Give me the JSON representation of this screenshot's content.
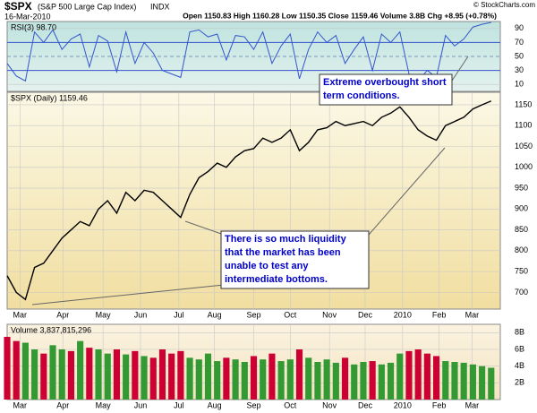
{
  "header": {
    "symbol": "$SPX",
    "name": "(S&P 500 Large Cap Index)",
    "exchange": "INDX",
    "date": "16-Mar-2010",
    "quote": "Open 1150.83  High 1160.28  Low 1150.35  Close 1159.46  Volume 3.8B  Chg +8.95 (+0.78%)",
    "credit": "© StockCharts.com"
  },
  "chart_data": [
    {
      "type": "line",
      "legend": "RSI(3) 98.70",
      "color": "#3355cc",
      "x": [
        0,
        1,
        2,
        3,
        4,
        5,
        6,
        7,
        8,
        9,
        10,
        11,
        12,
        13,
        14,
        15,
        16,
        17,
        18,
        19,
        20,
        21,
        22,
        23,
        24,
        25,
        26,
        27,
        28,
        29,
        30,
        31,
        32,
        33,
        34,
        35,
        36,
        37,
        38,
        39,
        40,
        41,
        42,
        43,
        44,
        45,
        46,
        47,
        48,
        49,
        50,
        51,
        52,
        53
      ],
      "values": [
        40,
        22,
        15,
        85,
        70,
        88,
        60,
        75,
        82,
        35,
        80,
        72,
        28,
        85,
        40,
        70,
        55,
        30,
        25,
        20,
        85,
        88,
        78,
        82,
        45,
        80,
        78,
        60,
        85,
        40,
        65,
        82,
        18,
        60,
        85,
        70,
        80,
        40,
        60,
        78,
        30,
        82,
        70,
        85,
        25,
        15,
        30,
        20,
        80,
        65,
        75,
        92,
        96,
        98.7
      ],
      "xlim": [
        0,
        54
      ],
      "ylim": [
        0,
        100
      ],
      "yticks": [
        10,
        30,
        50,
        70,
        90
      ]
    },
    {
      "type": "line",
      "legend": "$SPX (Daily) 1159.46",
      "color": "#000000",
      "x": [
        0,
        1,
        2,
        3,
        4,
        5,
        6,
        7,
        8,
        9,
        10,
        11,
        12,
        13,
        14,
        15,
        16,
        17,
        18,
        19,
        20,
        21,
        22,
        23,
        24,
        25,
        26,
        27,
        28,
        29,
        30,
        31,
        32,
        33,
        34,
        35,
        36,
        37,
        38,
        39,
        40,
        41,
        42,
        43,
        44,
        45,
        46,
        47,
        48,
        49,
        50,
        51,
        52,
        53
      ],
      "values": [
        740,
        700,
        683,
        760,
        770,
        800,
        830,
        850,
        870,
        860,
        900,
        920,
        890,
        940,
        920,
        945,
        940,
        920,
        900,
        880,
        935,
        975,
        990,
        1010,
        1000,
        1025,
        1040,
        1045,
        1070,
        1060,
        1070,
        1090,
        1040,
        1060,
        1090,
        1095,
        1110,
        1100,
        1105,
        1110,
        1100,
        1120,
        1130,
        1145,
        1120,
        1090,
        1075,
        1065,
        1100,
        1110,
        1120,
        1140,
        1150,
        1159
      ],
      "xlim": [
        0,
        54
      ],
      "ylim": [
        660,
        1180
      ],
      "yticks": [
        700,
        750,
        800,
        850,
        900,
        950,
        1000,
        1050,
        1100,
        1150
      ],
      "xticks": [
        {
          "value": 1.4,
          "label": "Mar"
        },
        {
          "value": 6.1,
          "label": "Apr"
        },
        {
          "value": 10.5,
          "label": "May"
        },
        {
          "value": 14.6,
          "label": "Jun"
        },
        {
          "value": 18.8,
          "label": "Jul"
        },
        {
          "value": 22.7,
          "label": "Aug"
        },
        {
          "value": 27,
          "label": "Sep"
        },
        {
          "value": 31,
          "label": "Oct"
        },
        {
          "value": 35.3,
          "label": "Nov"
        },
        {
          "value": 39.2,
          "label": "Dec"
        },
        {
          "value": 43.3,
          "label": "2010"
        },
        {
          "value": 47.3,
          "label": "Feb"
        },
        {
          "value": 50.9,
          "label": "Mar"
        }
      ],
      "annotations": [
        {
          "lines": [
            "Extreme overbought short",
            "term conditions."
          ]
        },
        {
          "lines": [
            "There is so much liquidity",
            "that the market has been",
            "unable to test any",
            "intermediate bottoms."
          ]
        }
      ]
    },
    {
      "type": "bar",
      "legend": "Volume 3,837,815,296",
      "x": [
        0,
        1,
        2,
        3,
        4,
        5,
        6,
        7,
        8,
        9,
        10,
        11,
        12,
        13,
        14,
        15,
        16,
        17,
        18,
        19,
        20,
        21,
        22,
        23,
        24,
        25,
        26,
        27,
        28,
        29,
        30,
        31,
        32,
        33,
        34,
        35,
        36,
        37,
        38,
        39,
        40,
        41,
        42,
        43,
        44,
        45,
        46,
        47,
        48,
        49,
        50,
        51,
        52,
        53
      ],
      "values": [
        7.5,
        7,
        6.8,
        6,
        5.5,
        6.5,
        6,
        5.8,
        7,
        6.2,
        6,
        5.5,
        6,
        5.4,
        5.8,
        5.2,
        5,
        6,
        5.5,
        5.8,
        5,
        4.8,
        5.5,
        4.6,
        5,
        4.8,
        4.5,
        5.2,
        4.8,
        5.5,
        4.6,
        4.8,
        6,
        5,
        4.5,
        4.8,
        4.4,
        5,
        4.2,
        4.5,
        4.6,
        4.2,
        4.4,
        5.5,
        5.8,
        6,
        5.5,
        5.2,
        4.6,
        4.5,
        4.4,
        4.2,
        4.0,
        3.8
      ],
      "colors": [
        "#cc0033",
        "#cc0033",
        "#339933",
        "#339933",
        "#cc0033",
        "#339933",
        "#339933",
        "#cc0033",
        "#339933",
        "#cc0033",
        "#339933",
        "#339933",
        "#cc0033",
        "#339933",
        "#cc0033",
        "#339933",
        "#cc0033",
        "#cc0033",
        "#cc0033",
        "#cc0033",
        "#339933",
        "#339933",
        "#339933",
        "#339933",
        "#cc0033",
        "#339933",
        "#339933",
        "#cc0033",
        "#339933",
        "#cc0033",
        "#339933",
        "#339933",
        "#cc0033",
        "#339933",
        "#339933",
        "#339933",
        "#339933",
        "#cc0033",
        "#339933",
        "#339933",
        "#cc0033",
        "#339933",
        "#339933",
        "#339933",
        "#cc0033",
        "#cc0033",
        "#cc0033",
        "#cc0033",
        "#339933",
        "#339933",
        "#339933",
        "#339933",
        "#339933",
        "#339933"
      ],
      "xlim": [
        0,
        54
      ],
      "ylim": [
        0,
        9
      ],
      "yticks": [
        {
          "value": 2,
          "label": "2B"
        },
        {
          "value": 4,
          "label": "4B"
        },
        {
          "value": 6,
          "label": "6B"
        },
        {
          "value": 8,
          "label": "8B"
        }
      ],
      "xticks": [
        {
          "value": 1.4,
          "label": "Mar"
        },
        {
          "value": 6.1,
          "label": "Apr"
        },
        {
          "value": 10.5,
          "label": "May"
        },
        {
          "value": 14.6,
          "label": "Jun"
        },
        {
          "value": 18.8,
          "label": "Jul"
        },
        {
          "value": 22.7,
          "label": "Aug"
        },
        {
          "value": 27,
          "label": "Sep"
        },
        {
          "value": 31,
          "label": "Oct"
        },
        {
          "value": 35.3,
          "label": "Nov"
        },
        {
          "value": 39.2,
          "label": "Dec"
        },
        {
          "value": 43.3,
          "label": "2010"
        },
        {
          "value": 47.3,
          "label": "Feb"
        },
        {
          "value": 50.9,
          "label": "Mar"
        }
      ]
    }
  ]
}
